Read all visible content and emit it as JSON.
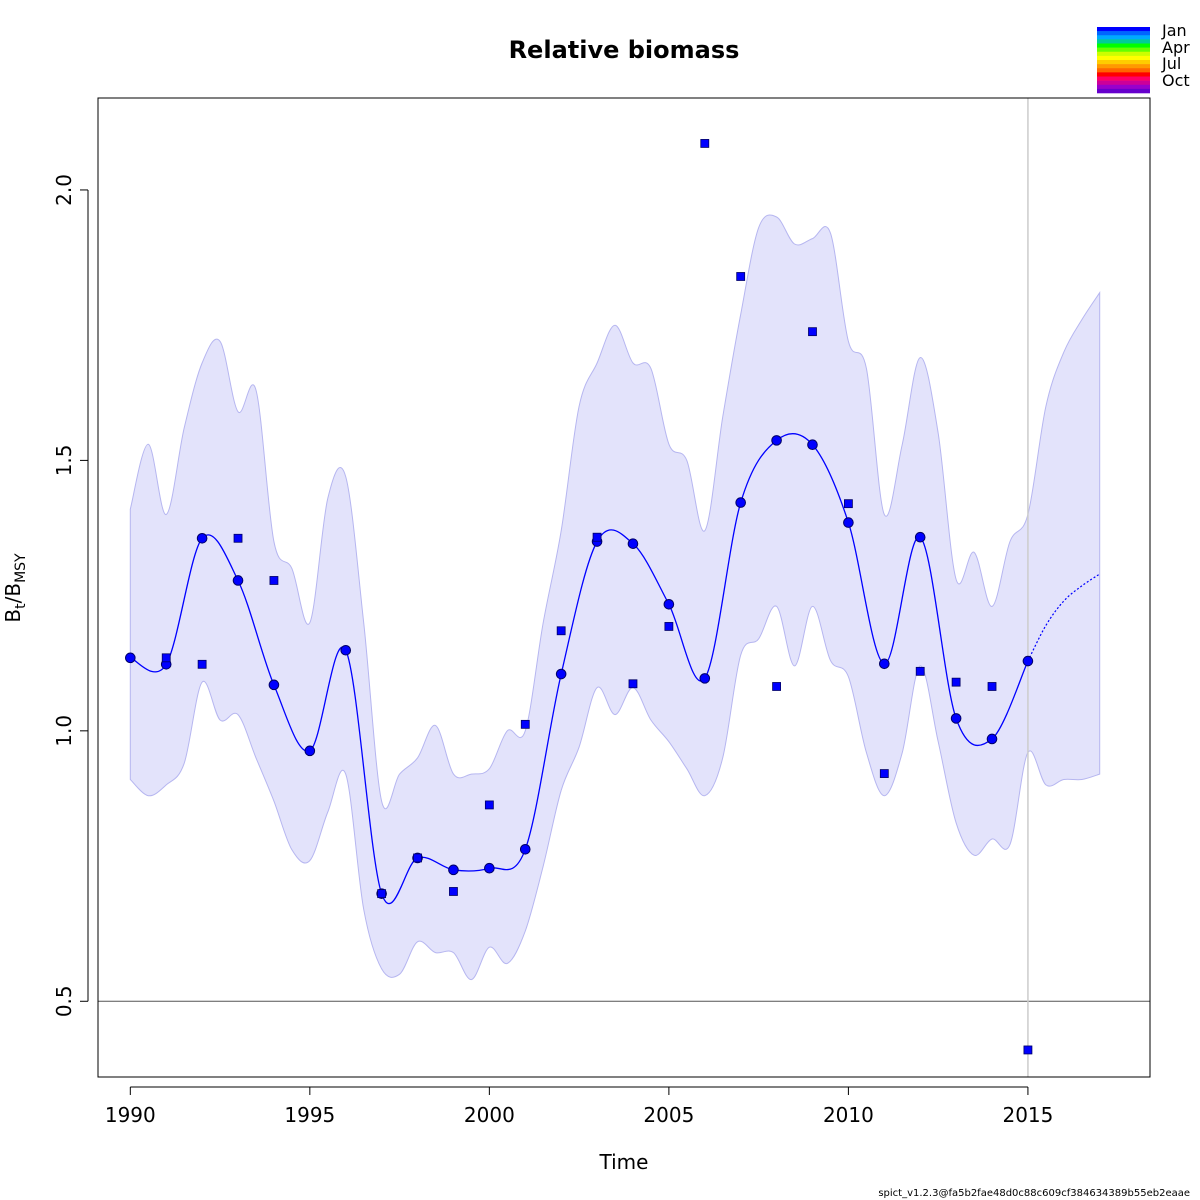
{
  "chart_data": {
    "type": "line",
    "title": "Relative biomass",
    "xlabel": "Time",
    "ylabel_main": "B",
    "ylabel_sub_t": "t",
    "ylabel_sep": "/B",
    "ylabel_sub_msy": "MSY",
    "xlim": [
      1989.1,
      2018.4
    ],
    "ylim": [
      0.36,
      2.17
    ],
    "x_ticks": [
      1990,
      1995,
      2000,
      2005,
      2010,
      2015
    ],
    "y_ticks": [
      0.5,
      1.0,
      1.5,
      2.0
    ],
    "y_tick_labels": [
      "0.5",
      "1.0",
      "1.5",
      "2.0"
    ],
    "reference_line_y": 0.5,
    "vertical_line_x": 2015,
    "series": [
      {
        "name": "",
        "kind": "estimate",
        "color": "#0000ff",
        "x": [
          1990,
          1991,
          1992,
          1993,
          1994,
          1995,
          1996,
          1997,
          1998,
          1999,
          2000,
          2001,
          2002,
          2003,
          2004,
          2005,
          2006,
          2007,
          2008,
          2009,
          2010,
          2011,
          2012,
          2013,
          2014,
          2015
        ],
        "y": [
          1.135,
          1.123,
          1.356,
          1.278,
          1.085,
          0.963,
          1.149,
          0.699,
          0.765,
          0.743,
          0.746,
          0.781,
          1.105,
          1.35,
          1.346,
          1.234,
          1.097,
          1.422,
          1.537,
          1.529,
          1.385,
          1.124,
          1.358,
          1.023,
          0.985,
          1.129
        ]
      },
      {
        "name": "",
        "kind": "prediction",
        "color": "#0000ff",
        "x": [
          2015.0,
          2015.5,
          2016.0,
          2016.5,
          2017.0
        ],
        "y": [
          1.129,
          1.195,
          1.24,
          1.268,
          1.29
        ]
      },
      {
        "name": "",
        "kind": "observations",
        "color": "#0000ff",
        "x": [
          1991,
          1992,
          1993,
          1994,
          1997,
          1998,
          1999,
          2000,
          2001,
          2002,
          2003,
          2004,
          2005,
          2006,
          2007,
          2008,
          2009,
          2010,
          2011,
          2012,
          2013,
          2014,
          2015
        ],
        "y": [
          1.135,
          1.123,
          1.356,
          1.278,
          0.699,
          0.765,
          0.703,
          0.863,
          1.012,
          1.185,
          1.358,
          1.087,
          1.193,
          2.086,
          1.84,
          1.082,
          1.738,
          1.42,
          0.921,
          1.11,
          1.09,
          1.082,
          0.41
        ]
      }
    ],
    "ci_band": {
      "color": "#e3e3fb",
      "x": [
        1990,
        1990.5,
        1991,
        1991.5,
        1992,
        1992.5,
        1993,
        1993.5,
        1994,
        1994.5,
        1995,
        1995.5,
        1996,
        1996.5,
        1997,
        1997.5,
        1998,
        1998.5,
        1999,
        1999.5,
        2000,
        2000.5,
        2001,
        2001.5,
        2002,
        2002.5,
        2003,
        2003.5,
        2004,
        2004.5,
        2005,
        2005.5,
        2006,
        2006.5,
        2007,
        2007.5,
        2008,
        2008.5,
        2009,
        2009.5,
        2010,
        2010.5,
        2011,
        2011.5,
        2012,
        2012.5,
        2013,
        2013.5,
        2014,
        2014.5,
        2015,
        2015.5,
        2016,
        2016.5,
        2017
      ],
      "upper": [
        1.41,
        1.53,
        1.4,
        1.56,
        1.68,
        1.72,
        1.59,
        1.63,
        1.35,
        1.3,
        1.2,
        1.43,
        1.47,
        1.2,
        0.87,
        0.92,
        0.95,
        1.01,
        0.92,
        0.92,
        0.93,
        1.0,
        1.0,
        1.2,
        1.37,
        1.6,
        1.68,
        1.75,
        1.68,
        1.67,
        1.53,
        1.5,
        1.37,
        1.58,
        1.77,
        1.93,
        1.95,
        1.9,
        1.91,
        1.92,
        1.72,
        1.67,
        1.4,
        1.53,
        1.69,
        1.55,
        1.28,
        1.33,
        1.23,
        1.35,
        1.4,
        1.6,
        1.7,
        1.76,
        1.81
      ],
      "lower": [
        0.91,
        0.88,
        0.9,
        0.94,
        1.09,
        1.02,
        1.03,
        0.95,
        0.87,
        0.78,
        0.76,
        0.85,
        0.92,
        0.67,
        0.56,
        0.55,
        0.61,
        0.59,
        0.59,
        0.54,
        0.6,
        0.57,
        0.63,
        0.75,
        0.89,
        0.97,
        1.08,
        1.03,
        1.08,
        1.02,
        0.98,
        0.93,
        0.88,
        0.95,
        1.14,
        1.17,
        1.23,
        1.12,
        1.23,
        1.13,
        1.1,
        0.96,
        0.88,
        0.96,
        1.12,
        0.98,
        0.83,
        0.77,
        0.8,
        0.79,
        0.96,
        0.9,
        0.91,
        0.91,
        0.92
      ]
    },
    "season_legend": {
      "labels": [
        "Jan",
        "Apr",
        "Jul",
        "Oct"
      ],
      "colors": [
        "#0000ff",
        "#0066ff",
        "#00aaff",
        "#00cc99",
        "#00ff00",
        "#66ff00",
        "#ccff00",
        "#ffff00",
        "#ffcc00",
        "#ff9900",
        "#ff6600",
        "#ff0000",
        "#ff0066",
        "#cc0099",
        "#9900cc",
        "#6600cc"
      ]
    }
  },
  "footer": "spict_v1.2.3@fa5b2fae48d0c88c609cf384634389b55eb2eaae"
}
